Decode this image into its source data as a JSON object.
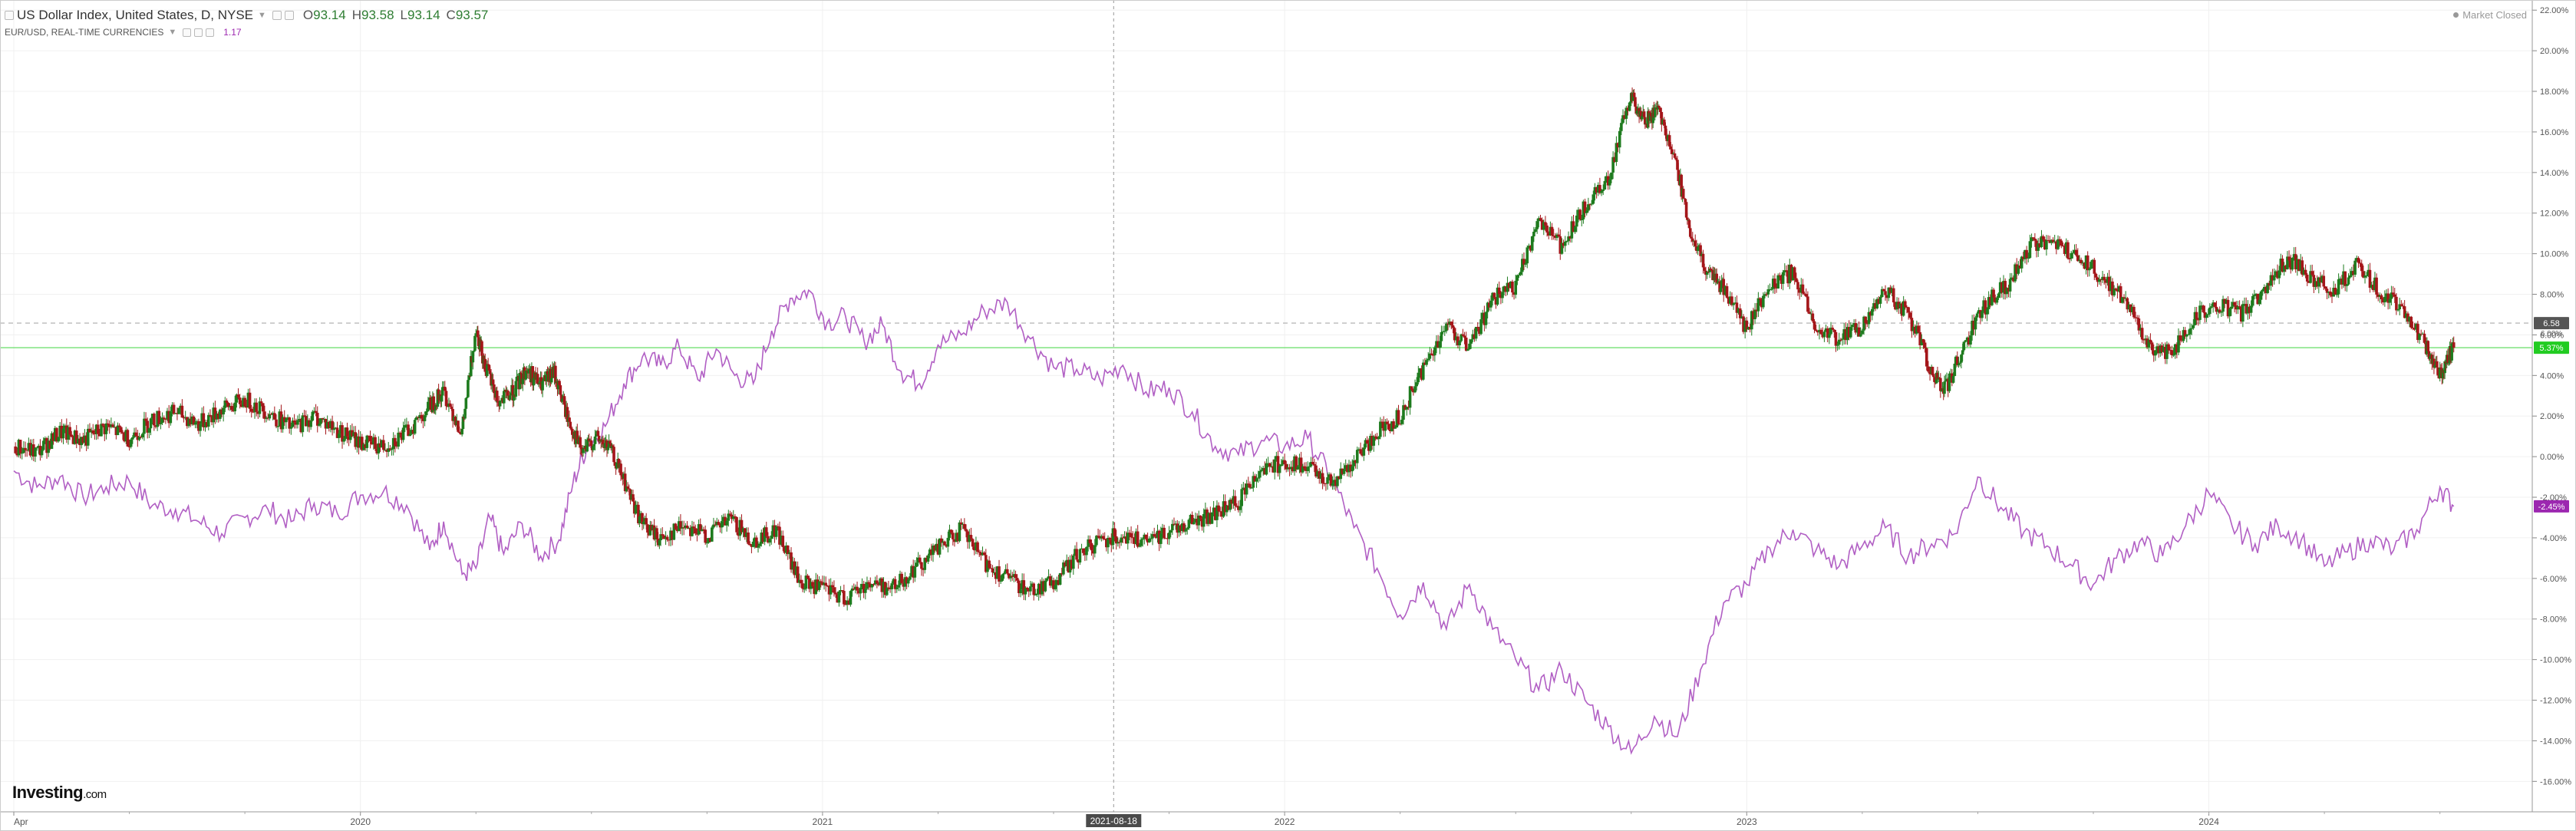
{
  "header": {
    "title": "US Dollar Index, United States, D, NYSE",
    "ohlc": {
      "o_label": "O",
      "o": "93.14",
      "h_label": "H",
      "h": "93.58",
      "l_label": "L",
      "l": "93.14",
      "c_label": "C",
      "c": "93.57"
    },
    "compare_symbol": "EUR/USD, REAL-TIME CURRENCIES",
    "compare_value": "1.17",
    "market_status": "Market Closed"
  },
  "branding": {
    "logo": "Investing",
    "logo_suffix": ".com"
  },
  "colors": {
    "up": "#1e7b1e",
    "down": "#a4161a",
    "compare": "#b15fc4",
    "last_line": "#66dd66",
    "last_badge": "#22cc22",
    "prev_badge": "#555555",
    "cmp_badge": "#9c27b0"
  },
  "chart_data": {
    "type": "line",
    "title": "US Dollar Index, United States, D, NYSE",
    "xlabel": "",
    "ylabel": "",
    "yaxis_unit": "%",
    "ylim": [
      -17.5,
      22.5
    ],
    "y_ticks": [
      22,
      20,
      18,
      16,
      14,
      12,
      10,
      8,
      6,
      4,
      2,
      0,
      -2,
      -4,
      -6,
      -8,
      -10,
      -12,
      -14,
      -16
    ],
    "y_tick_labels": [
      "22.00%",
      "20.00%",
      "18.00%",
      "16.00%",
      "14.00%",
      "12.00%",
      "10.00%",
      "8.00%",
      "6.00%",
      "4.00%",
      "2.00%",
      "0.00%",
      "-2.00%",
      "-4.00%",
      "-6.00%",
      "-8.00%",
      "-10.00%",
      "-12.00%",
      "-14.00%",
      "-16.00%"
    ],
    "x_ticks": [
      {
        "label": "Apr",
        "t": 0.0
      },
      {
        "label": "2020",
        "t": 0.75
      },
      {
        "label": "2021",
        "t": 1.75
      },
      {
        "label": "2022",
        "t": 2.75
      },
      {
        "label": "2023",
        "t": 3.75
      },
      {
        "label": "2024",
        "t": 4.75
      }
    ],
    "x_range": [
      0,
      5.4
    ],
    "crosshair": {
      "label": "2021-08-18",
      "t": 2.38
    },
    "reference_levels": [
      {
        "value": 6.58,
        "style": "dashed",
        "badge": "6.58"
      }
    ],
    "last_value": {
      "value": 5.37,
      "label": "5.37%",
      "secondary_label": "6.00%"
    },
    "compare_last": {
      "value": -2.45,
      "label": "-2.45%"
    },
    "grid": true,
    "legend": "none",
    "series": [
      {
        "name": "US Dollar Index",
        "style": "candlestick",
        "points": [
          [
            0.0,
            0.5
          ],
          [
            0.05,
            0.2
          ],
          [
            0.1,
            1.2
          ],
          [
            0.15,
            0.8
          ],
          [
            0.2,
            1.5
          ],
          [
            0.25,
            0.9
          ],
          [
            0.3,
            1.8
          ],
          [
            0.35,
            2.2
          ],
          [
            0.4,
            1.6
          ],
          [
            0.45,
            2.3
          ],
          [
            0.5,
            2.8
          ],
          [
            0.55,
            2.2
          ],
          [
            0.6,
            1.4
          ],
          [
            0.65,
            2.0
          ],
          [
            0.7,
            1.3
          ],
          [
            0.75,
            0.7
          ],
          [
            0.8,
            0.5
          ],
          [
            0.85,
            1.2
          ],
          [
            0.9,
            2.5
          ],
          [
            0.93,
            3.2
          ],
          [
            0.97,
            1.2
          ],
          [
            1.0,
            6.4
          ],
          [
            1.02,
            4.5
          ],
          [
            1.05,
            2.6
          ],
          [
            1.08,
            3.2
          ],
          [
            1.11,
            4.3
          ],
          [
            1.14,
            3.5
          ],
          [
            1.17,
            4.1
          ],
          [
            1.2,
            1.8
          ],
          [
            1.23,
            0.2
          ],
          [
            1.26,
            0.9
          ],
          [
            1.29,
            0.4
          ],
          [
            1.32,
            -1.2
          ],
          [
            1.36,
            -3.3
          ],
          [
            1.4,
            -4.1
          ],
          [
            1.45,
            -3.3
          ],
          [
            1.5,
            -3.9
          ],
          [
            1.55,
            -3.1
          ],
          [
            1.6,
            -4.2
          ],
          [
            1.65,
            -3.6
          ],
          [
            1.7,
            -6.2
          ],
          [
            1.75,
            -6.5
          ],
          [
            1.8,
            -7.0
          ],
          [
            1.85,
            -6.2
          ],
          [
            1.9,
            -6.5
          ],
          [
            1.95,
            -5.5
          ],
          [
            2.0,
            -4.5
          ],
          [
            2.05,
            -3.6
          ],
          [
            2.1,
            -5.2
          ],
          [
            2.15,
            -6.0
          ],
          [
            2.2,
            -6.6
          ],
          [
            2.25,
            -6.2
          ],
          [
            2.3,
            -4.9
          ],
          [
            2.35,
            -4.1
          ],
          [
            2.4,
            -3.8
          ],
          [
            2.45,
            -4.3
          ],
          [
            2.5,
            -3.6
          ],
          [
            2.55,
            -3.2
          ],
          [
            2.6,
            -2.8
          ],
          [
            2.65,
            -2.2
          ],
          [
            2.7,
            -0.5
          ],
          [
            2.75,
            -0.3
          ],
          [
            2.8,
            -0.6
          ],
          [
            2.85,
            -1.2
          ],
          [
            2.9,
            -0.3
          ],
          [
            2.95,
            1.2
          ],
          [
            3.0,
            2.0
          ],
          [
            3.05,
            4.4
          ],
          [
            3.1,
            6.5
          ],
          [
            3.15,
            5.3
          ],
          [
            3.2,
            7.8
          ],
          [
            3.25,
            8.3
          ],
          [
            3.3,
            11.8
          ],
          [
            3.35,
            10.3
          ],
          [
            3.4,
            12.3
          ],
          [
            3.45,
            13.8
          ],
          [
            3.5,
            17.8
          ],
          [
            3.53,
            16.5
          ],
          [
            3.56,
            17.2
          ],
          [
            3.6,
            14.2
          ],
          [
            3.63,
            10.8
          ],
          [
            3.67,
            8.9
          ],
          [
            3.7,
            8.3
          ],
          [
            3.75,
            6.3
          ],
          [
            3.8,
            8.5
          ],
          [
            3.85,
            9.1
          ],
          [
            3.9,
            6.3
          ],
          [
            3.95,
            5.8
          ],
          [
            4.0,
            6.4
          ],
          [
            4.05,
            8.2
          ],
          [
            4.1,
            7.0
          ],
          [
            4.15,
            4.2
          ],
          [
            4.18,
            3.3
          ],
          [
            4.22,
            5.5
          ],
          [
            4.27,
            7.6
          ],
          [
            4.32,
            8.6
          ],
          [
            4.37,
            10.6
          ],
          [
            4.42,
            10.3
          ],
          [
            4.47,
            9.9
          ],
          [
            4.52,
            8.8
          ],
          [
            4.57,
            7.7
          ],
          [
            4.62,
            5.5
          ],
          [
            4.67,
            5.1
          ],
          [
            4.72,
            6.9
          ],
          [
            4.77,
            7.5
          ],
          [
            4.82,
            7.0
          ],
          [
            4.87,
            8.1
          ],
          [
            4.92,
            9.8
          ],
          [
            4.97,
            8.9
          ],
          [
            5.02,
            8.1
          ],
          [
            5.07,
            9.5
          ],
          [
            5.12,
            8.1
          ],
          [
            5.17,
            7.3
          ],
          [
            5.22,
            5.5
          ],
          [
            5.25,
            4.1
          ],
          [
            5.28,
            5.37
          ]
        ]
      },
      {
        "name": "EUR/USD",
        "style": "line",
        "points": [
          [
            0.0,
            -0.7
          ],
          [
            0.05,
            -1.5
          ],
          [
            0.1,
            -1.0
          ],
          [
            0.15,
            -2.0
          ],
          [
            0.2,
            -1.5
          ],
          [
            0.25,
            -1.2
          ],
          [
            0.3,
            -2.4
          ],
          [
            0.35,
            -2.6
          ],
          [
            0.4,
            -3.2
          ],
          [
            0.45,
            -3.8
          ],
          [
            0.5,
            -3.0
          ],
          [
            0.55,
            -2.6
          ],
          [
            0.6,
            -3.2
          ],
          [
            0.65,
            -2.3
          ],
          [
            0.7,
            -2.8
          ],
          [
            0.75,
            -1.9
          ],
          [
            0.8,
            -1.7
          ],
          [
            0.85,
            -2.4
          ],
          [
            0.9,
            -4.6
          ],
          [
            0.93,
            -3.2
          ],
          [
            0.97,
            -5.8
          ],
          [
            1.0,
            -5.5
          ],
          [
            1.03,
            -3.0
          ],
          [
            1.06,
            -4.8
          ],
          [
            1.1,
            -3.3
          ],
          [
            1.14,
            -4.9
          ],
          [
            1.18,
            -4.1
          ],
          [
            1.21,
            -1.3
          ],
          [
            1.24,
            0.5
          ],
          [
            1.28,
            1.5
          ],
          [
            1.32,
            3.6
          ],
          [
            1.36,
            4.9
          ],
          [
            1.4,
            4.5
          ],
          [
            1.44,
            5.4
          ],
          [
            1.48,
            3.8
          ],
          [
            1.52,
            5.3
          ],
          [
            1.56,
            4.0
          ],
          [
            1.6,
            3.6
          ],
          [
            1.64,
            6.2
          ],
          [
            1.68,
            7.8
          ],
          [
            1.72,
            8.2
          ],
          [
            1.76,
            6.6
          ],
          [
            1.8,
            6.9
          ],
          [
            1.84,
            5.7
          ],
          [
            1.88,
            6.5
          ],
          [
            1.92,
            4.2
          ],
          [
            1.96,
            3.6
          ],
          [
            2.0,
            5.5
          ],
          [
            2.05,
            6.0
          ],
          [
            2.1,
            7.2
          ],
          [
            2.15,
            7.6
          ],
          [
            2.2,
            5.8
          ],
          [
            2.25,
            4.4
          ],
          [
            2.3,
            4.3
          ],
          [
            2.35,
            3.8
          ],
          [
            2.4,
            4.5
          ],
          [
            2.45,
            3.2
          ],
          [
            2.5,
            3.4
          ],
          [
            2.55,
            2.2
          ],
          [
            2.6,
            0.5
          ],
          [
            2.65,
            0.1
          ],
          [
            2.7,
            0.8
          ],
          [
            2.75,
            0.5
          ],
          [
            2.8,
            0.9
          ],
          [
            2.85,
            -1.0
          ],
          [
            2.9,
            -3.5
          ],
          [
            2.95,
            -5.5
          ],
          [
            3.0,
            -7.8
          ],
          [
            3.05,
            -6.2
          ],
          [
            3.1,
            -8.5
          ],
          [
            3.15,
            -6.3
          ],
          [
            3.2,
            -8.5
          ],
          [
            3.25,
            -10.0
          ],
          [
            3.3,
            -11.5
          ],
          [
            3.35,
            -10.5
          ],
          [
            3.4,
            -12.0
          ],
          [
            3.45,
            -13.3
          ],
          [
            3.5,
            -14.6
          ],
          [
            3.55,
            -12.8
          ],
          [
            3.6,
            -13.8
          ],
          [
            3.65,
            -10.5
          ],
          [
            3.7,
            -7.2
          ],
          [
            3.75,
            -6.3
          ],
          [
            3.8,
            -4.5
          ],
          [
            3.85,
            -3.6
          ],
          [
            3.9,
            -4.6
          ],
          [
            3.95,
            -5.4
          ],
          [
            4.0,
            -4.4
          ],
          [
            4.05,
            -3.5
          ],
          [
            4.1,
            -4.9
          ],
          [
            4.15,
            -4.3
          ],
          [
            4.2,
            -3.8
          ],
          [
            4.25,
            -1.0
          ],
          [
            4.3,
            -2.5
          ],
          [
            4.35,
            -3.7
          ],
          [
            4.4,
            -4.4
          ],
          [
            4.45,
            -5.3
          ],
          [
            4.5,
            -6.3
          ],
          [
            4.55,
            -5.0
          ],
          [
            4.6,
            -4.2
          ],
          [
            4.65,
            -4.9
          ],
          [
            4.7,
            -3.4
          ],
          [
            4.75,
            -1.8
          ],
          [
            4.8,
            -3.4
          ],
          [
            4.85,
            -4.3
          ],
          [
            4.9,
            -3.4
          ],
          [
            4.95,
            -4.1
          ],
          [
            5.0,
            -5.4
          ],
          [
            5.05,
            -4.7
          ],
          [
            5.1,
            -4.1
          ],
          [
            5.15,
            -4.6
          ],
          [
            5.2,
            -3.6
          ],
          [
            5.25,
            -1.5
          ],
          [
            5.28,
            -2.45
          ]
        ]
      }
    ]
  }
}
